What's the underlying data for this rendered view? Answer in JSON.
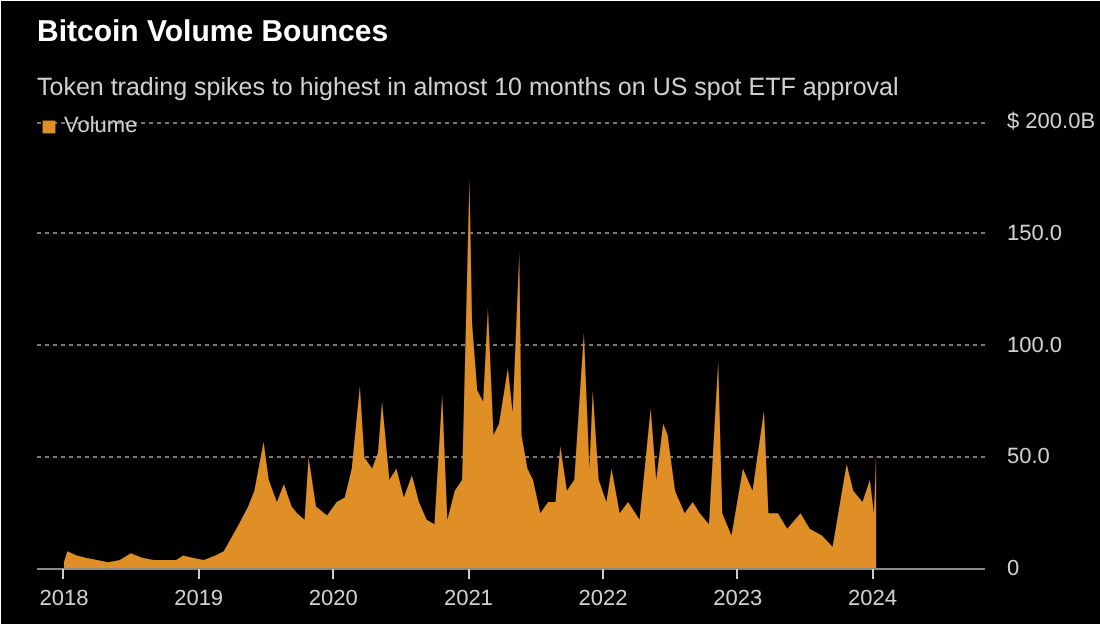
{
  "chart_data": {
    "type": "area",
    "title": "Bitcoin Volume Bounces",
    "subtitle": "Token trading spikes to highest in almost 10 months on US spot ETF approval",
    "x": [
      "2018-01-01",
      "2018-01-10",
      "2018-02-05",
      "2018-03-01",
      "2018-04-01",
      "2018-05-01",
      "2018-06-01",
      "2018-07-01",
      "2018-08-01",
      "2018-09-01",
      "2018-10-01",
      "2018-11-01",
      "2018-11-20",
      "2018-12-15",
      "2019-01-15",
      "2019-02-15",
      "2019-03-10",
      "2019-04-03",
      "2019-04-20",
      "2019-05-15",
      "2019-06-01",
      "2019-06-26",
      "2019-07-10",
      "2019-08-01",
      "2019-08-20",
      "2019-09-10",
      "2019-09-25",
      "2019-10-15",
      "2019-10-26",
      "2019-11-15",
      "2019-12-15",
      "2020-01-10",
      "2020-02-01",
      "2020-02-20",
      "2020-03-13",
      "2020-03-25",
      "2020-04-15",
      "2020-05-01",
      "2020-05-12",
      "2020-06-01",
      "2020-06-20",
      "2020-07-10",
      "2020-08-01",
      "2020-08-20",
      "2020-09-10",
      "2020-10-01",
      "2020-10-22",
      "2020-11-05",
      "2020-11-25",
      "2020-12-15",
      "2021-01-04",
      "2021-01-11",
      "2021-01-25",
      "2021-02-10",
      "2021-02-23",
      "2021-03-10",
      "2021-03-25",
      "2021-04-18",
      "2021-05-01",
      "2021-05-19",
      "2021-05-25",
      "2021-06-10",
      "2021-06-25",
      "2021-07-15",
      "2021-08-05",
      "2021-08-25",
      "2021-09-07",
      "2021-09-25",
      "2021-10-15",
      "2021-11-10",
      "2021-11-25",
      "2021-12-04",
      "2021-12-20",
      "2022-01-10",
      "2022-01-24",
      "2022-02-15",
      "2022-03-10",
      "2022-04-10",
      "2022-05-10",
      "2022-05-25",
      "2022-06-13",
      "2022-06-25",
      "2022-07-15",
      "2022-08-10",
      "2022-09-01",
      "2022-09-20",
      "2022-10-15",
      "2022-11-09",
      "2022-11-20",
      "2022-12-15",
      "2023-01-15",
      "2023-02-10",
      "2023-03-13",
      "2023-03-25",
      "2023-04-20",
      "2023-05-15",
      "2023-06-20",
      "2023-07-15",
      "2023-08-17",
      "2023-09-15",
      "2023-10-23",
      "2023-11-10",
      "2023-12-05",
      "2023-12-25",
      "2024-01-05",
      "2024-01-11"
    ],
    "series": [
      {
        "name": "Volume",
        "color": "#e08e26",
        "values": [
          3,
          8,
          6,
          5,
          4,
          3,
          4,
          7,
          5,
          4,
          4,
          4,
          6,
          5,
          4,
          6,
          8,
          15,
          20,
          28,
          35,
          57,
          40,
          30,
          38,
          28,
          25,
          22,
          50,
          28,
          24,
          30,
          32,
          45,
          82,
          50,
          45,
          52,
          75,
          40,
          45,
          32,
          42,
          30,
          22,
          20,
          78,
          22,
          35,
          40,
          175,
          110,
          80,
          75,
          117,
          60,
          65,
          90,
          70,
          142,
          60,
          45,
          40,
          25,
          30,
          30,
          55,
          35,
          40,
          106,
          45,
          80,
          40,
          30,
          45,
          25,
          30,
          22,
          72,
          40,
          65,
          60,
          35,
          25,
          30,
          25,
          20,
          93,
          25,
          15,
          45,
          35,
          71,
          25,
          25,
          18,
          25,
          18,
          15,
          10,
          47,
          35,
          30,
          40,
          25,
          52
        ]
      }
    ],
    "xlim": [
      "2017-10-20",
      "2024-11-01"
    ],
    "xticks": [
      {
        "value": "2018-01-01",
        "label": "2018"
      },
      {
        "value": "2019-01-01",
        "label": "2019"
      },
      {
        "value": "2020-01-01",
        "label": "2020"
      },
      {
        "value": "2021-01-01",
        "label": "2021"
      },
      {
        "value": "2022-01-01",
        "label": "2022"
      },
      {
        "value": "2023-01-01",
        "label": "2023"
      },
      {
        "value": "2024-01-01",
        "label": "2024"
      }
    ],
    "ylim": [
      0,
      205
    ],
    "yticks": [
      0,
      {
        "value": 50,
        "label": "50.0"
      },
      {
        "value": 100,
        "label": "100.0"
      },
      {
        "value": 150,
        "label": "150.0"
      },
      {
        "value": 200,
        "label": "$ 200.0B"
      }
    ],
    "grid": "y",
    "legend": "top left"
  }
}
